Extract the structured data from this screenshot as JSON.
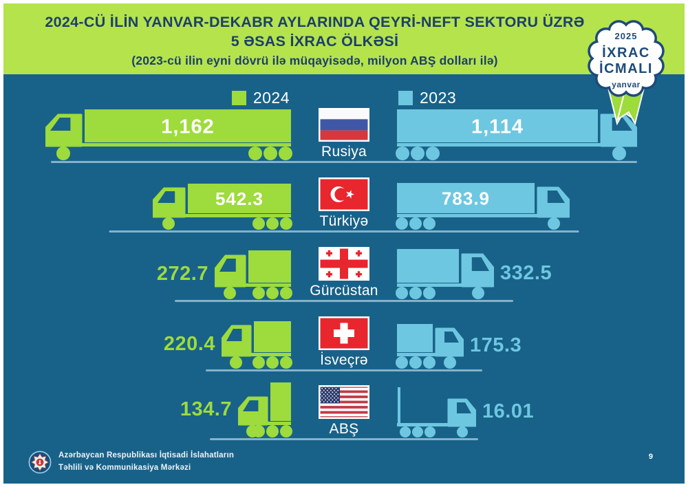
{
  "page": {
    "background": "#186289",
    "border_color": "#ffffff",
    "page_number": "9"
  },
  "header": {
    "background": "#b4e34c",
    "text_color": "#1d3f6d",
    "title_line1": "2024-CÜ İLİN YANVAR-DEKABR AYLARINDA QEYRİ-NEFT SEKTORU ÜZRƏ",
    "title_line2": "5 ƏSAS İXRAC ÖLKƏSİ",
    "subtitle": "(2023-cü ilin eyni dövrü ilə müqayisədə, milyon ABŞ dolları ilə)"
  },
  "badge": {
    "year": "2025",
    "title_line1": "İXRAC",
    "title_line2": "İCMALI",
    "month": "yanvar"
  },
  "legend": {
    "items": [
      {
        "label": "2024",
        "color": "#9edb3c"
      },
      {
        "label": "2023",
        "color": "#6ec7e0"
      }
    ]
  },
  "chart_data": {
    "type": "bar",
    "variant": "paired-truck-pictogram",
    "title": "2024-cü ilin yanvar-dekabr aylarında qeyri-neft sektoru üzrə 5 əsas ixrac ölkəsi",
    "subtitle": "2023-cü ilin eyni dövrü ilə müqayisədə",
    "unit": "milyon ABŞ dolları",
    "categories": [
      "Rusiya",
      "Türkiyə",
      "Gürcüstan",
      "İsveçrə",
      "ABŞ"
    ],
    "flags": [
      "russia",
      "turkey",
      "georgia",
      "switzerland",
      "usa"
    ],
    "series": [
      {
        "name": "2024",
        "color": "#9edb3c",
        "side": "left",
        "values": [
          1162,
          542.3,
          272.7,
          220.4,
          134.7
        ],
        "labels": [
          "1,162",
          "542.3",
          "272.7",
          "220.4",
          "134.7"
        ]
      },
      {
        "name": "2023",
        "color": "#6ec7e0",
        "side": "right",
        "values": [
          1114,
          783.9,
          332.5,
          175.3,
          16.01
        ],
        "labels": [
          "1,114",
          "783.9",
          "332.5",
          "175.3",
          "16.01"
        ]
      }
    ],
    "legend_position": "top-center",
    "grid": false
  },
  "footer": {
    "org_line1": "Azərbaycan Respublikası İqtisadi İslahatların",
    "org_line2": "Təhlili və Kommunikasiya Mərkəzi"
  }
}
